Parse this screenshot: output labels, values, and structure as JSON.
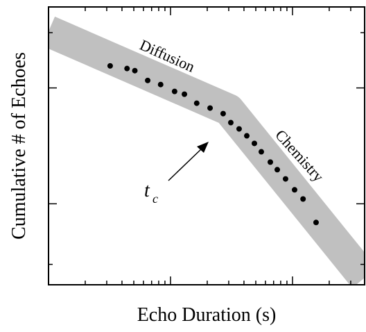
{
  "chart_data": {
    "type": "scatter",
    "xlabel": "Echo Duration (s)",
    "ylabel": "Cumulative # of Echoes",
    "xscale": "log",
    "yscale": "log",
    "xlim": [
      0.1,
      39
    ],
    "ylim": [
      0.2,
      50
    ],
    "xticks": [
      1,
      10
    ],
    "yticks": [
      1,
      10
    ],
    "xminorticks": [
      0.2,
      0.3,
      0.4,
      0.5,
      0.6,
      0.7,
      0.8,
      0.9,
      2,
      3,
      4,
      5,
      6,
      7,
      8,
      9,
      20,
      30
    ],
    "yminorticks": [
      0.3,
      30
    ],
    "color": "#000000",
    "band_color": "#c0c0c0",
    "series": [
      {
        "name": "Echoes",
        "color": "#000000",
        "x": [
          0.32,
          0.44,
          0.51,
          0.65,
          0.83,
          1.08,
          1.3,
          1.64,
          2.11,
          2.7,
          3.12,
          3.65,
          4.22,
          4.87,
          5.55,
          6.58,
          7.5,
          8.77,
          10.4,
          12.2,
          15.6
        ],
        "values": [
          15.5,
          14.7,
          14.1,
          11.6,
          10.7,
          9.33,
          8.83,
          7.38,
          6.7,
          6.0,
          5.02,
          4.43,
          3.86,
          3.32,
          2.81,
          2.29,
          1.97,
          1.64,
          1.32,
          1.1,
          0.69
        ]
      }
    ],
    "annotations": {
      "diffusion": "Diffusion",
      "chemistry": "Chemistry",
      "tc": {
        "main": "t",
        "sub": "c"
      }
    }
  }
}
